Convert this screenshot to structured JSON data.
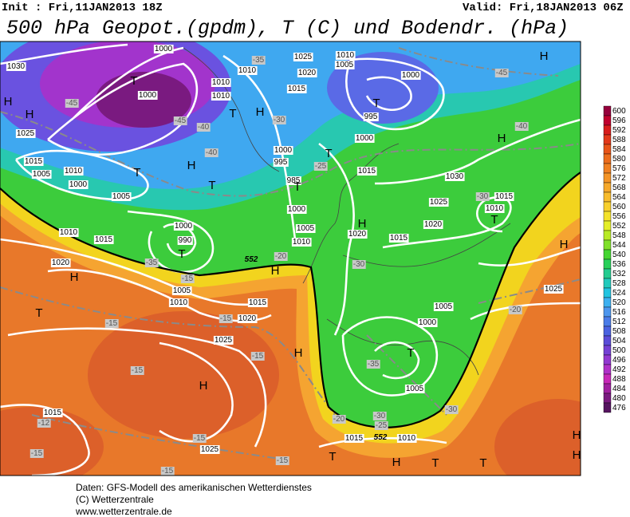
{
  "header": {
    "init": "Init : Fri,11JAN2013 18Z",
    "valid": "Valid: Fri,18JAN2013 06Z",
    "title": "500 hPa Geopot.(gpdm), T (C) und Bodendr. (hPa)"
  },
  "legend": {
    "values": [
      600,
      596,
      592,
      588,
      584,
      580,
      576,
      572,
      568,
      564,
      560,
      556,
      552,
      548,
      544,
      540,
      536,
      532,
      528,
      524,
      520,
      516,
      512,
      508,
      504,
      500,
      496,
      492,
      488,
      484,
      480,
      476
    ],
    "colors": [
      "#96003c",
      "#c0002e",
      "#d81c1c",
      "#e2381a",
      "#e85418",
      "#ec6c1c",
      "#f08020",
      "#f49426",
      "#f6a82a",
      "#f8bc2c",
      "#f8d02c",
      "#f4e22a",
      "#e4ee28",
      "#b8ea26",
      "#80e02a",
      "#44d632",
      "#28d05a",
      "#24cc90",
      "#22cabc",
      "#22c4e0",
      "#3cb0f0",
      "#4c96ee",
      "#4a7ce8",
      "#4a62e0",
      "#5a4cd8",
      "#7440d4",
      "#9238d0",
      "#b030c8",
      "#c828b8",
      "#a020a0",
      "#7a1a80",
      "#561460"
    ]
  },
  "map_labels": [
    "1030",
    "1025",
    "1015",
    "1005",
    "1010",
    "1000",
    "1010",
    "1015",
    "1020",
    "1005",
    "1000",
    "1000",
    "-45",
    "-45",
    "-40",
    "-40",
    "-35",
    "1010",
    "1010",
    "1010",
    "1025",
    "1020",
    "1015",
    "1010",
    "1005",
    "1000",
    "995",
    "-30",
    "1000",
    "995",
    "985",
    "1000",
    "1000",
    "-25",
    "1015",
    "1030",
    "1025",
    "1020",
    "1015",
    "1020",
    "-30",
    "-30",
    "1015",
    "1010",
    "1000",
    "990",
    "-35",
    "-15",
    "1005",
    "1010",
    "1015",
    "-15",
    "1020",
    "-15",
    "1025",
    "-15",
    "-15",
    "1015",
    "-12",
    "-15",
    "-15",
    "1025",
    "-15",
    "-15",
    "-20",
    "-20",
    "-30",
    "-25",
    "1015",
    "1010",
    "-30",
    "1005",
    "1000",
    "-35",
    "1005",
    "-20",
    "1025",
    "-40",
    "-45",
    "1010",
    "1005",
    "552",
    "552",
    "H",
    "H",
    "T",
    "T",
    "H",
    "T",
    "T",
    "H",
    "T",
    "T",
    "T",
    "H",
    "H",
    "T",
    "H",
    "H",
    "H",
    "T",
    "T",
    "H",
    "H",
    "H",
    "T",
    "H",
    "H",
    "T",
    "H",
    "T",
    "T"
  ],
  "footer": [
    "Daten: GFS-Modell des amerikanischen Wetterdienstes",
    "(C) Wetterzentrale",
    "www.wetterzentrale.de"
  ]
}
